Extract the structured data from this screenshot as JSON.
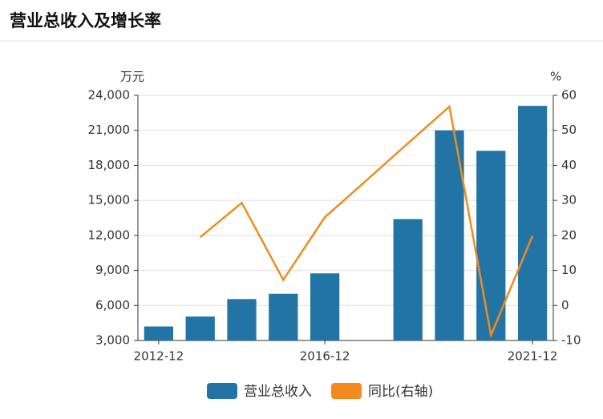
{
  "header": {
    "title": "营业总收入及增长率"
  },
  "chart_data": {
    "type": "bar-line",
    "y_unit": "万元",
    "y2_unit": "%",
    "categories": [
      "2012-12",
      null,
      null,
      null,
      "2016-12",
      null,
      null,
      null,
      null,
      "2021-12"
    ],
    "series": [
      {
        "name": "营业总收入",
        "type": "bar",
        "color": "#2274a5",
        "values": [
          4200,
          5050,
          6550,
          7000,
          8750,
          null,
          13400,
          21000,
          19250,
          23100
        ]
      },
      {
        "name": "同比(右轴)",
        "type": "line",
        "axis": "y2",
        "color": "#f28a1e",
        "values": [
          null,
          19.5,
          29.3,
          7.3,
          25.2,
          35.7,
          46.3,
          56.8,
          -8.5,
          19.9
        ]
      }
    ],
    "ylim": [
      3000,
      24000
    ],
    "yticks": [
      {
        "value": 3000,
        "label": "3,000"
      },
      {
        "value": 6000,
        "label": "6,000"
      },
      {
        "value": 9000,
        "label": "9,000"
      },
      {
        "value": 12000,
        "label": "12,000"
      },
      {
        "value": 15000,
        "label": "15,000"
      },
      {
        "value": 18000,
        "label": "18,000"
      },
      {
        "value": 21000,
        "label": "21,000"
      },
      {
        "value": 24000,
        "label": "24,000"
      }
    ],
    "y2lim": [
      -10,
      60
    ],
    "y2ticks": [
      -10,
      0,
      10,
      20,
      30,
      40,
      50,
      60
    ],
    "grid": true
  }
}
